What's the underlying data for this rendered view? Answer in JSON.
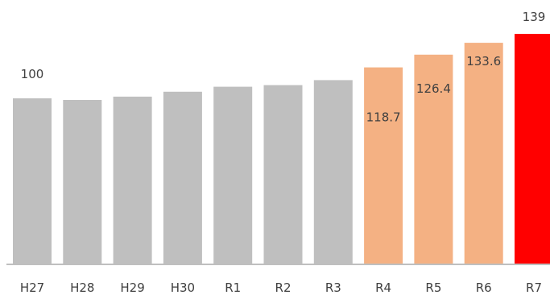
{
  "chart_data": {
    "type": "bar",
    "title": "",
    "xlabel": "",
    "ylabel": "",
    "categories": [
      "H27",
      "H28",
      "H29",
      "H30",
      "R1",
      "R2",
      "R3",
      "R4",
      "R5",
      "R6",
      "R7"
    ],
    "values": [
      100,
      99,
      101,
      104,
      107,
      108,
      111,
      118.7,
      126.4,
      133.6,
      139
    ],
    "data_labels": [
      "100",
      "",
      "",
      "",
      "",
      "",
      "",
      "118.7",
      "126.4",
      "133.6",
      "139"
    ],
    "bar_colors": [
      "#bfbfbf",
      "#bfbfbf",
      "#bfbfbf",
      "#bfbfbf",
      "#bfbfbf",
      "#bfbfbf",
      "#bfbfbf",
      "#f4b183",
      "#f4b183",
      "#f4b183",
      "#ff0000"
    ],
    "ylim": [
      0,
      139
    ],
    "grid": false,
    "legend": "none",
    "axis_color": "#bfbfbf"
  }
}
